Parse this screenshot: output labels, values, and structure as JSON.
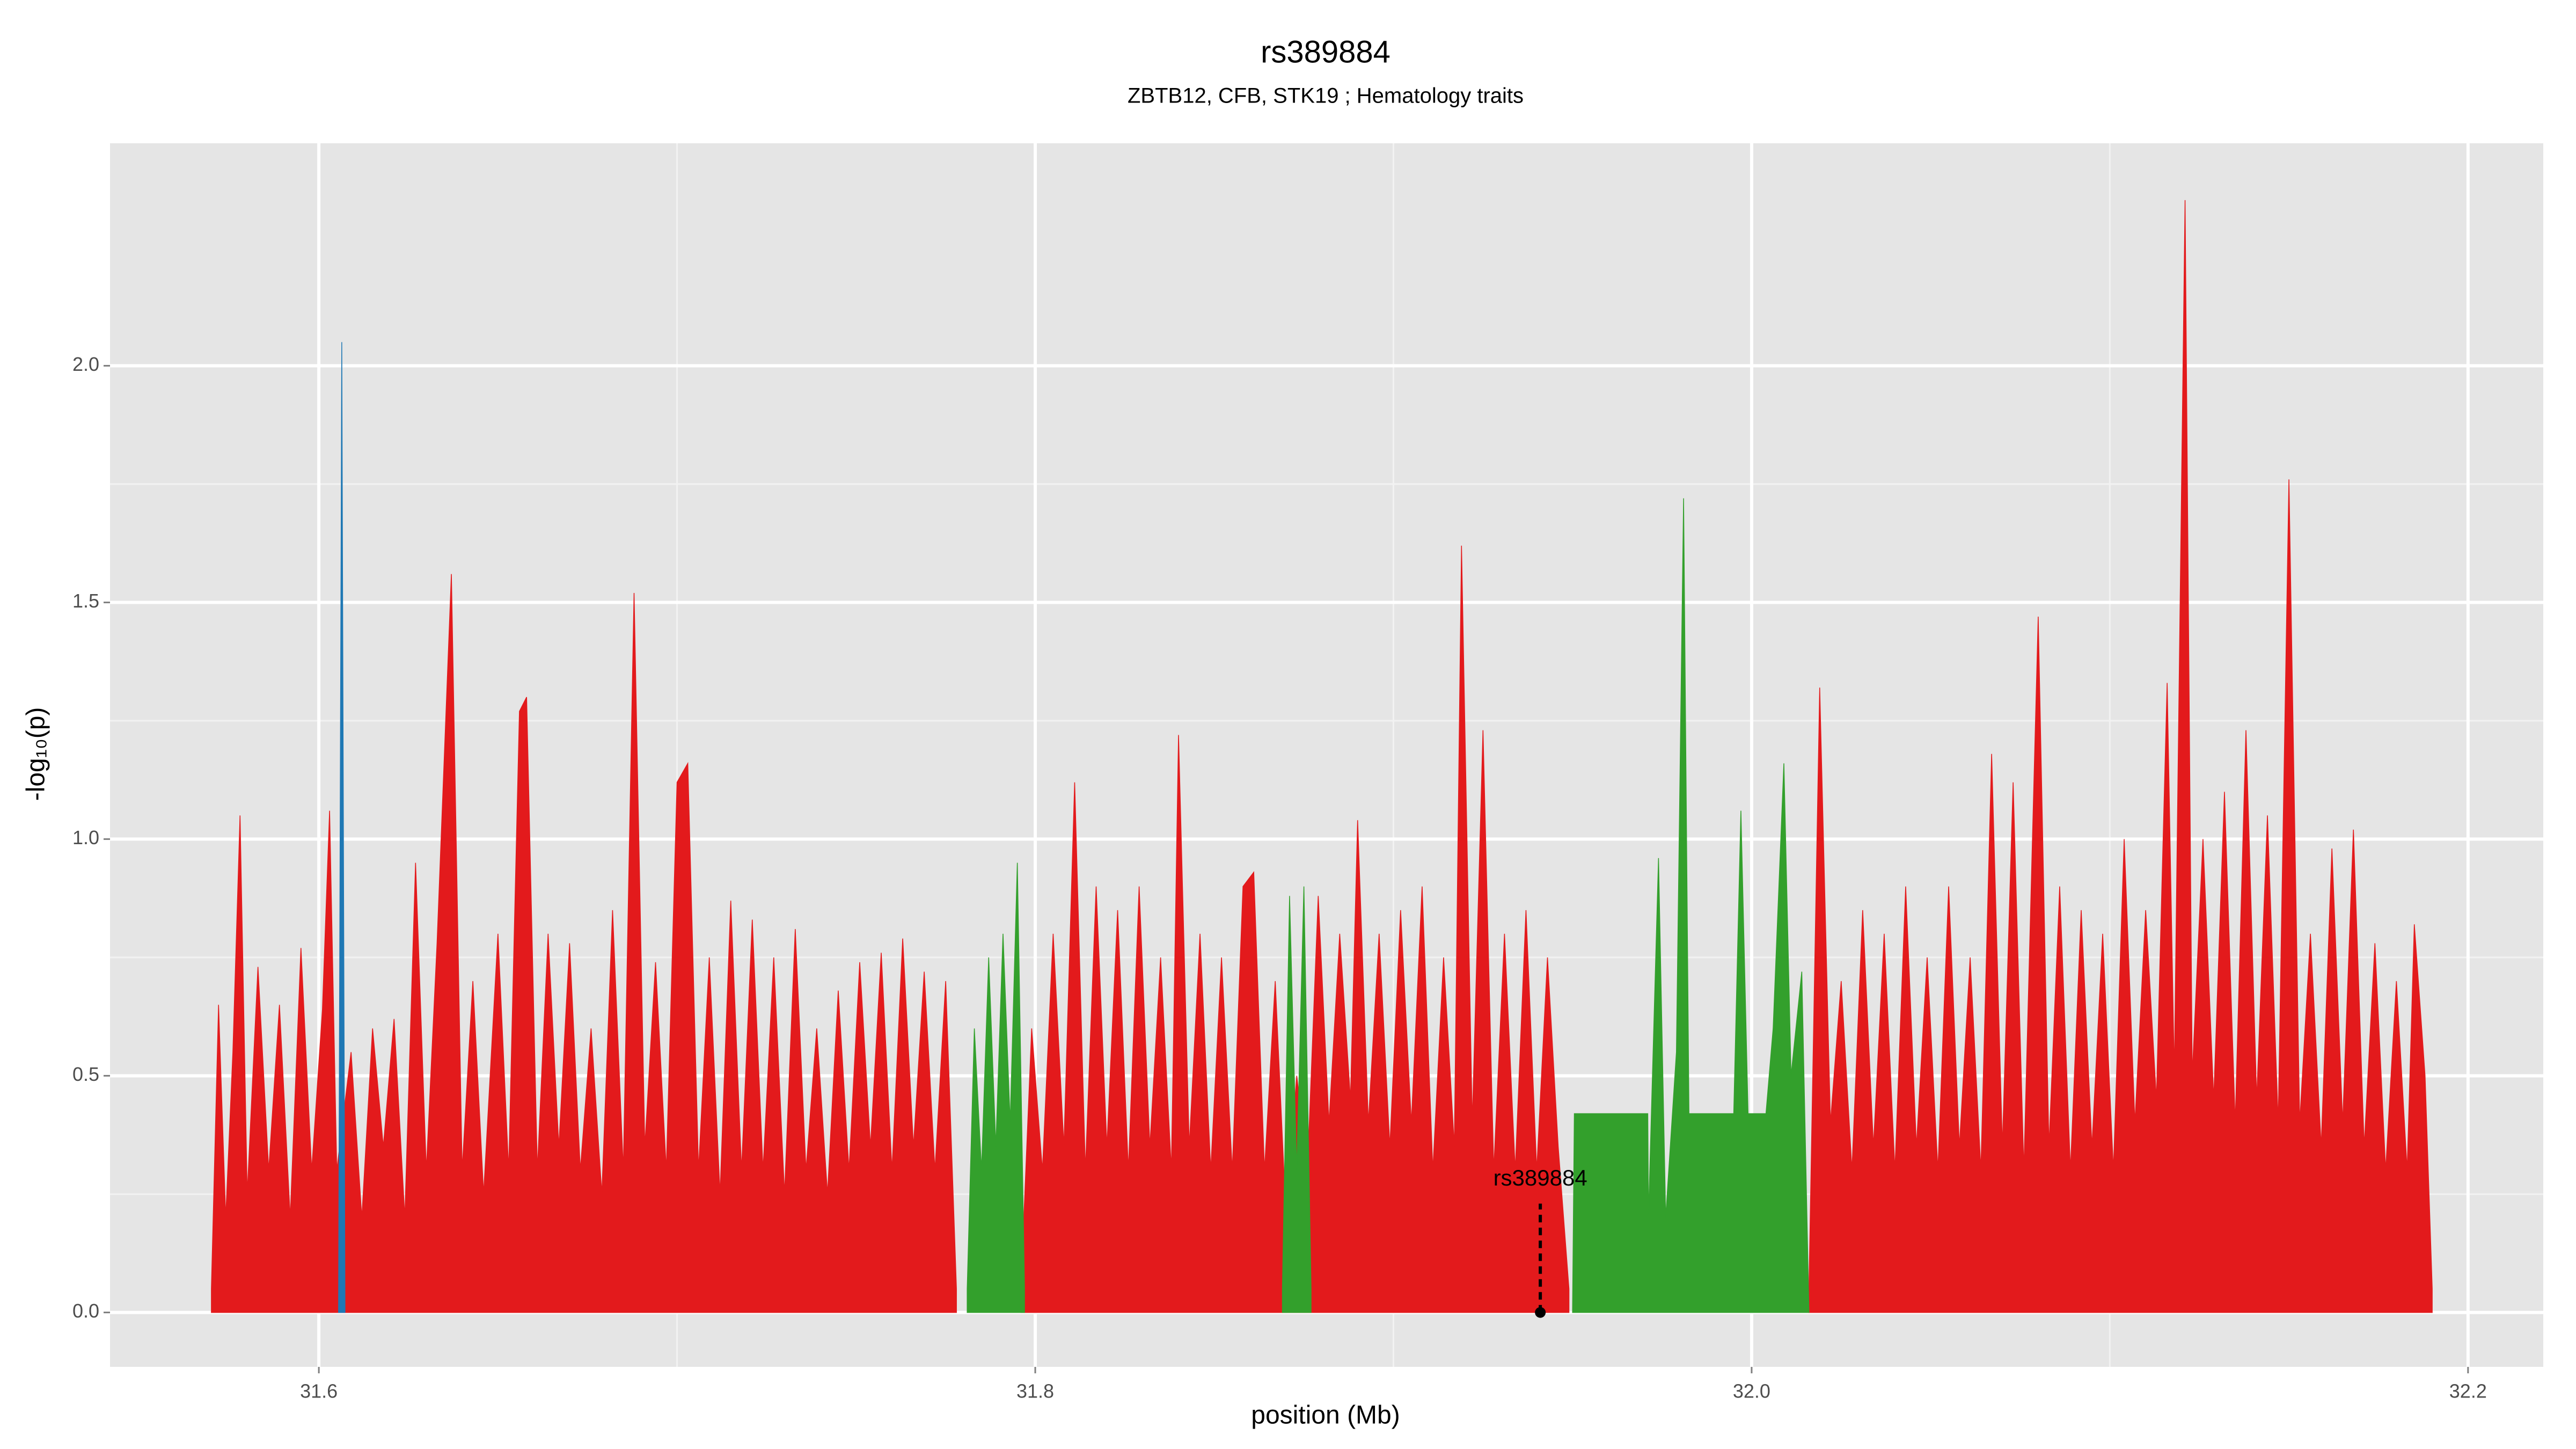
{
  "chart_data": {
    "type": "area",
    "title": "rs389884",
    "subtitle": "ZBTB12, CFB, STK19  ; Hematology traits",
    "xlabel": "position (Mb)",
    "ylabel": "-log₁₀(p)",
    "xlim": [
      31.5417,
      32.221
    ],
    "ylim": [
      -0.115,
      2.47
    ],
    "xticks": [
      31.6,
      31.8,
      {
        "value": 32,
        "label": "32.0"
      },
      32.2
    ],
    "yticks": [
      {
        "value": 0,
        "label": "0.0"
      },
      0.5,
      {
        "value": 1,
        "label": "1.0"
      },
      1.5,
      {
        "value": 2,
        "label": "2.0"
      }
    ],
    "grid": true,
    "series": [
      {
        "color": "#e31a1c",
        "x": [
          31.57,
          31.572,
          31.574,
          31.576,
          31.578,
          31.58,
          31.583,
          31.586,
          31.589,
          31.592,
          31.595,
          31.598,
          31.601,
          31.603,
          31.605,
          31.609,
          31.612,
          31.615,
          31.618,
          31.621,
          31.624,
          31.627,
          31.63,
          31.633,
          31.637,
          31.64,
          31.643,
          31.646,
          31.65,
          31.653,
          31.656,
          31.658,
          31.661,
          31.664,
          31.667,
          31.67,
          31.673,
          31.676,
          31.679,
          31.682,
          31.685,
          31.688,
          31.691,
          31.694,
          31.697,
          31.7,
          31.703,
          31.706,
          31.709,
          31.712,
          31.715,
          31.718,
          31.721,
          31.724,
          31.727,
          31.73,
          31.733,
          31.736,
          31.739,
          31.742,
          31.745,
          31.748,
          31.751,
          31.754,
          31.757,
          31.76,
          31.763,
          31.766,
          31.769,
          31.772,
          31.775,
          31.778,
          31.785,
          31.796,
          31.799,
          31.802,
          31.805,
          31.808,
          31.811,
          31.814,
          31.817,
          31.82,
          31.823,
          31.826,
          31.829,
          31.832,
          31.835,
          31.838,
          31.84,
          31.843,
          31.846,
          31.849,
          31.852,
          31.855,
          31.858,
          31.861,
          31.864,
          31.867,
          31.87,
          31.873,
          31.876,
          31.879,
          31.882,
          31.885,
          31.888,
          31.89,
          31.893,
          31.896,
          31.899,
          31.902,
          31.905,
          31.908,
          31.911,
          31.914,
          31.917,
          31.919,
          31.922,
          31.925,
          31.928,
          31.931,
          31.934,
          31.937,
          31.94,
          31.943,
          31.946,
          31.949,
          31.98,
          32.016,
          32.019,
          32.022,
          32.025,
          32.028,
          32.031,
          32.034,
          32.037,
          32.04,
          32.043,
          32.046,
          32.049,
          32.052,
          32.055,
          32.058,
          32.061,
          32.064,
          32.067,
          32.07,
          32.073,
          32.076,
          32.08,
          32.083,
          32.086,
          32.089,
          32.092,
          32.095,
          32.098,
          32.101,
          32.104,
          32.107,
          32.11,
          32.113,
          32.116,
          32.118,
          32.121,
          32.123,
          32.126,
          32.129,
          32.132,
          32.135,
          32.138,
          32.141,
          32.144,
          32.147,
          32.15,
          32.153,
          32.156,
          32.159,
          32.162,
          32.165,
          32.168,
          32.171,
          32.174,
          32.177,
          32.18,
          32.183,
          32.185,
          32.188,
          32.19
        ],
        "values": [
          0.05,
          0.65,
          0.2,
          0.55,
          1.05,
          0.25,
          0.73,
          0.3,
          0.65,
          0.2,
          0.77,
          0.3,
          0.64,
          1.06,
          0.3,
          0.55,
          0.2,
          0.6,
          0.35,
          0.62,
          0.2,
          0.95,
          0.3,
          0.78,
          1.56,
          0.3,
          0.7,
          0.25,
          0.8,
          0.3,
          1.27,
          1.3,
          0.3,
          0.8,
          0.35,
          0.78,
          0.3,
          0.6,
          0.25,
          0.85,
          0.3,
          1.52,
          0.35,
          0.74,
          0.3,
          1.12,
          1.16,
          0.3,
          0.75,
          0.25,
          0.87,
          0.3,
          0.83,
          0.3,
          0.75,
          0.25,
          0.81,
          0.3,
          0.6,
          0.25,
          0.68,
          0.3,
          0.74,
          0.35,
          0.76,
          0.3,
          0.79,
          0.35,
          0.72,
          0.3,
          0.7,
          0.05,
          null,
          0.05,
          0.6,
          0.3,
          0.8,
          0.35,
          1.12,
          0.3,
          0.9,
          0.35,
          0.85,
          0.3,
          0.9,
          0.35,
          0.75,
          0.3,
          1.22,
          0.35,
          0.8,
          0.3,
          0.75,
          0.3,
          0.9,
          0.93,
          0.3,
          0.7,
          0.2,
          0.5,
          0.3,
          0.88,
          0.4,
          0.8,
          0.45,
          1.04,
          0.4,
          0.8,
          0.35,
          0.85,
          0.4,
          0.9,
          0.3,
          0.75,
          0.35,
          1.62,
          0.4,
          1.23,
          0.3,
          0.8,
          0.3,
          0.85,
          0.3,
          0.75,
          0.35,
          0.05,
          null,
          0.05,
          1.32,
          0.4,
          0.7,
          0.3,
          0.85,
          0.35,
          0.8,
          0.3,
          0.9,
          0.35,
          0.75,
          0.3,
          0.9,
          0.35,
          0.75,
          0.3,
          1.18,
          0.35,
          1.12,
          0.3,
          1.47,
          0.35,
          0.9,
          0.3,
          0.85,
          0.35,
          0.8,
          0.3,
          1.0,
          0.4,
          0.85,
          0.45,
          1.33,
          0.5,
          2.35,
          0.5,
          1.0,
          0.45,
          1.1,
          0.4,
          1.23,
          0.45,
          1.05,
          0.4,
          1.76,
          0.4,
          0.8,
          0.35,
          0.98,
          0.4,
          1.02,
          0.35,
          0.78,
          0.3,
          0.7,
          0.3,
          0.82,
          0.5,
          0.05
        ]
      },
      {
        "color": "#33a02c",
        "x": [
          31.781,
          31.783,
          31.785,
          31.787,
          31.789,
          31.791,
          31.793,
          31.795,
          31.797,
          31.83,
          31.869,
          31.871,
          31.873,
          31.875,
          31.877,
          31.91,
          31.95,
          31.9505,
          31.971,
          31.9712,
          31.974,
          31.976,
          31.979,
          31.981,
          31.9825,
          31.995,
          31.997,
          31.999,
          32.004,
          32.006,
          32.009,
          32.011,
          32.014,
          32.016
        ],
        "values": [
          0.05,
          0.6,
          0.3,
          0.75,
          0.35,
          0.8,
          0.4,
          0.95,
          0.05,
          null,
          0.05,
          0.88,
          0.3,
          0.9,
          0.05,
          null,
          0,
          0.42,
          0.42,
          0.2,
          0.96,
          0.2,
          0.55,
          1.72,
          0.42,
          0.42,
          1.06,
          0.42,
          0.42,
          0.6,
          1.16,
          0.5,
          0.72,
          0
        ]
      },
      {
        "color": "#1f78b4",
        "x": [
          31.6055,
          31.6064,
          31.6073
        ],
        "values": [
          0,
          2.05,
          0
        ]
      }
    ],
    "annotation": {
      "label": "rs389884",
      "x": 31.941,
      "y": 0,
      "line_top": 0.23
    }
  }
}
